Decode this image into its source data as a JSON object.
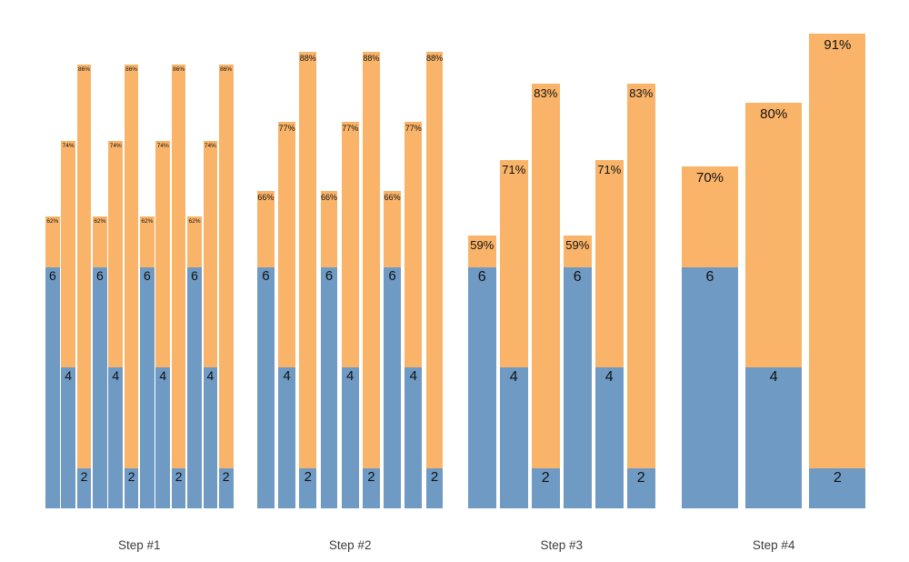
{
  "chart_data": {
    "type": "bar",
    "stacked": true,
    "title": "",
    "legend": null,
    "axes_visible": false,
    "background": "#ffffff",
    "colors": {
      "base_segment": "#6f9ac3",
      "total_segment": "#f9b469",
      "value_label": "#111111",
      "group_label": "#3d3d3d"
    },
    "pct_suffix": "%",
    "groups": [
      {
        "label": "Step #1",
        "bars": [
          {
            "base": 6,
            "total_pct": 62
          },
          {
            "base": 4,
            "total_pct": 74
          },
          {
            "base": 2,
            "total_pct": 86
          },
          {
            "base": 6,
            "total_pct": 62
          },
          {
            "base": 4,
            "total_pct": 74
          },
          {
            "base": 2,
            "total_pct": 86
          },
          {
            "base": 6,
            "total_pct": 62
          },
          {
            "base": 4,
            "total_pct": 74
          },
          {
            "base": 2,
            "total_pct": 86
          },
          {
            "base": 6,
            "total_pct": 62
          },
          {
            "base": 4,
            "total_pct": 74
          },
          {
            "base": 2,
            "total_pct": 86
          }
        ]
      },
      {
        "label": "Step #2",
        "bars": [
          {
            "base": 6,
            "total_pct": 66
          },
          {
            "base": 4,
            "total_pct": 77
          },
          {
            "base": 2,
            "total_pct": 88
          },
          {
            "base": 6,
            "total_pct": 66
          },
          {
            "base": 4,
            "total_pct": 77
          },
          {
            "base": 2,
            "total_pct": 88
          },
          {
            "base": 6,
            "total_pct": 66
          },
          {
            "base": 4,
            "total_pct": 77
          },
          {
            "base": 2,
            "total_pct": 88
          }
        ]
      },
      {
        "label": "Step #3",
        "bars": [
          {
            "base": 6,
            "total_pct": 59
          },
          {
            "base": 4,
            "total_pct": 71
          },
          {
            "base": 2,
            "total_pct": 83
          },
          {
            "base": 6,
            "total_pct": 59
          },
          {
            "base": 4,
            "total_pct": 71
          },
          {
            "base": 2,
            "total_pct": 83
          }
        ]
      },
      {
        "label": "Step #4",
        "bars": [
          {
            "base": 6,
            "total_pct": 70
          },
          {
            "base": 4,
            "total_pct": 80
          },
          {
            "base": 2,
            "total_pct": 91
          }
        ]
      }
    ]
  }
}
